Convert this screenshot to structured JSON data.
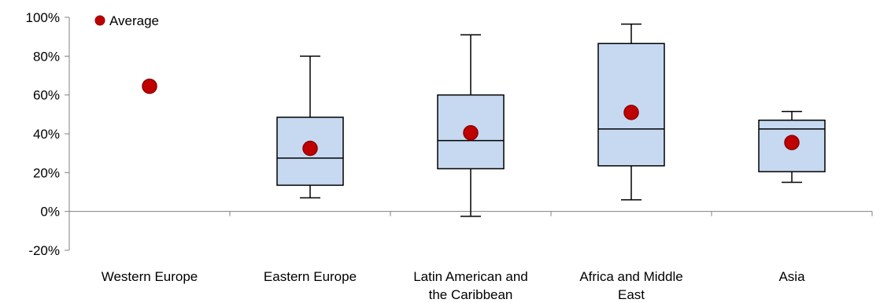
{
  "chart_data": {
    "type": "boxplot",
    "title": "",
    "xlabel": "",
    "ylabel": "",
    "ylim": [
      -20,
      100
    ],
    "y_tick_values": [
      -20,
      0,
      20,
      40,
      60,
      80,
      100
    ],
    "y_tick_labels": [
      "-20%",
      "0%",
      "20%",
      "40%",
      "60%",
      "80%",
      "100%"
    ],
    "grid": false,
    "legend": {
      "placement": "top-left",
      "entries": [
        "Average"
      ]
    },
    "categories": [
      [
        "Western Europe"
      ],
      [
        "Eastern Europe"
      ],
      [
        "Latin American and",
        "the Caribbean"
      ],
      [
        "Africa and Middle",
        "East"
      ],
      [
        "Asia"
      ]
    ],
    "series": [
      {
        "kind": "box",
        "boxes": [
          null,
          {
            "min": 7,
            "q1": 13.5,
            "median": 27.5,
            "q3": 48.5,
            "max": 80
          },
          {
            "min": -2.5,
            "q1": 22,
            "median": 36.5,
            "q3": 60,
            "max": 91
          },
          {
            "min": 6,
            "q1": 23.5,
            "median": 42.5,
            "q3": 86.5,
            "max": 96.5
          },
          {
            "min": 15,
            "q1": 20.5,
            "median": 42.5,
            "q3": 47,
            "max": 51.5
          }
        ]
      },
      {
        "name": "Average",
        "kind": "point",
        "values": [
          64.5,
          32.5,
          40.5,
          51,
          35.5
        ]
      }
    ],
    "colors": {
      "box_fill": "#c6d9f1",
      "box_stroke": "#000000",
      "average_marker": "#c00000",
      "average_marker_edge": "#8b0000",
      "axis": "#808080"
    }
  }
}
